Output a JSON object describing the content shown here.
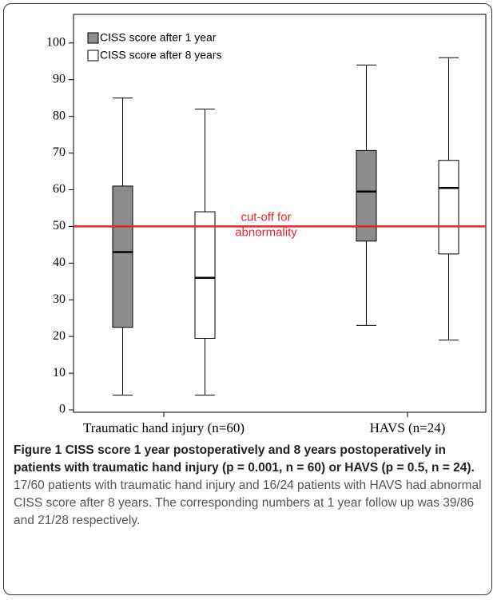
{
  "chart_data": {
    "type": "box",
    "categories": [
      "Traumatic hand injury (n=60)",
      "HAVS (n=24)"
    ],
    "series": [
      {
        "name": "CISS score after 1 year",
        "color": "#8c8c8c",
        "min": [
          4,
          23
        ],
        "q1": [
          22.5,
          46
        ],
        "median": [
          43,
          59.5
        ],
        "q3": [
          61,
          70.7
        ],
        "max": [
          85,
          94
        ]
      },
      {
        "name": "CISS score after 8 years",
        "color": "#ffffff",
        "min": [
          4,
          19
        ],
        "q1": [
          19.5,
          42.5
        ],
        "median": [
          36,
          60.5
        ],
        "q3": [
          54,
          68
        ],
        "max": [
          82,
          96
        ]
      }
    ],
    "ylim": [
      -0.65,
      107.8
    ],
    "yticks": [
      0,
      10,
      20,
      30,
      40,
      50,
      60,
      70,
      80,
      90,
      100
    ],
    "reference_line": {
      "value": 50,
      "label_lines": [
        "cut-off for",
        "abnormality"
      ],
      "color": "#e8262a"
    }
  },
  "caption": {
    "title": "Figure 1 CISS score 1 year postoperatively and 8 years postoperatively in patients with traumatic hand injury (p = 0.001, n = 60) or HAVS (p = 0.5, n = 24).",
    "text": "17/60 patients with traumatic hand injury and 16/24 patients with HAVS had abnormal CISS score after 8 years. The corresponding numbers at 1 year follow up was 39/86 and 21/28 respectively."
  }
}
